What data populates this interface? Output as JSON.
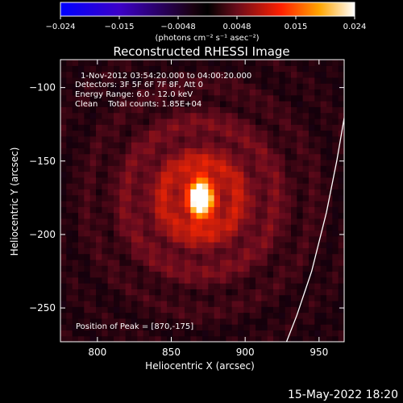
{
  "chart_data": {
    "type": "heatmap",
    "title": "Reconstructed RHESSI Image",
    "colorbar": {
      "ticks": [
        "−0.024",
        "−0.015",
        "−0.0048",
        "0.0048",
        "0.015",
        "0.024"
      ],
      "range": [
        -0.024,
        0.024
      ],
      "unit_label": "(photons cm⁻² s⁻¹ asec⁻²)"
    },
    "xlabel": "Heliocentric X (arcsec)",
    "ylabel": "Heliocentric Y (arcsec)",
    "xlim": [
      775,
      967
    ],
    "ylim": [
      -273,
      -81
    ],
    "xticks": [
      800,
      850,
      900,
      950
    ],
    "yticks": [
      -100,
      -150,
      -200,
      -250
    ],
    "annotations": [
      "1-Nov-2012 03:54:20.000 to 04:00:20.000",
      "Detectors: 3F 5F 6F 7F 8F, Att 0",
      "Energy Range: 6.0 - 12.0 keV",
      "Clean    Total counts: 1.85E+04"
    ],
    "peak_label": "Position of Peak = [870,-175]",
    "peak": [
      870,
      -175
    ],
    "limb_curve": [
      [
        928,
        -273
      ],
      [
        935,
        -255
      ],
      [
        945,
        -225
      ],
      [
        955,
        -185
      ],
      [
        962,
        -150
      ],
      [
        968,
        -115
      ]
    ]
  },
  "footer_date": "15-May-2022 18:20"
}
